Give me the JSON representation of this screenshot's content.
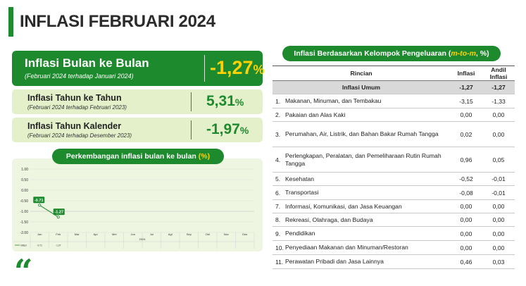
{
  "page": {
    "title": "INFLASI FEBRUARI 2024"
  },
  "mtm": {
    "label": "Inflasi Bulan ke Bulan",
    "sub": "(Februari 2024 terhadap Januari  2024)",
    "value": "-1,27",
    "unit": "%"
  },
  "yoy": {
    "label": "Inflasi Tahun ke Tahun",
    "sub": "(Februari 2024 terhadap Februari 2023)",
    "value": "5,31",
    "unit": "%"
  },
  "ytd": {
    "label": "Inflasi Tahun Kalender",
    "sub": "(Februari 2024 terhadap Desember 2023)",
    "value": "-1,97",
    "unit": "%"
  },
  "chart_section": {
    "title": "Perkembangan inflasi bulan ke bulan",
    "title_unit": "(%)"
  },
  "chart_data": {
    "type": "line",
    "categories": [
      "Jan",
      "Feb",
      "Mar",
      "Apr",
      "Mei",
      "Jun",
      "Jul",
      "Agt",
      "Sep",
      "Okt",
      "Nov",
      "Des"
    ],
    "year_label": "2024",
    "series": [
      {
        "name": "Inflasi",
        "values": [
          -0.71,
          -1.27,
          null,
          null,
          null,
          null,
          null,
          null,
          null,
          null,
          null,
          null
        ]
      }
    ],
    "data_labels": [
      "-0.71",
      "-1.27"
    ],
    "table_values": [
      "-0.71",
      "-1.27"
    ],
    "y_ticks": [
      "1.00",
      "0.50",
      "0.00",
      "-0.50",
      "-1.00",
      "-1.50",
      "-2.00"
    ],
    "ylim": [
      -2.0,
      1.0
    ],
    "color": "#1e8a2e"
  },
  "quote_mark": "“",
  "table": {
    "title": "Inflasi Berdasarkan Kelompok Pengeluaran",
    "title_unit_open": "(",
    "title_unit_em": "m-to-m",
    "title_unit_close": ", %)",
    "headers": {
      "rincian": "Rincian",
      "inflasi": "Inflasi",
      "andil": "Andil Inflasi"
    },
    "total": {
      "label": "Inflasi Umum",
      "inflasi": "-1,27",
      "andil": "-1,27"
    },
    "rows": [
      {
        "no": "1.",
        "label": "Makanan, Minuman, dan Tembakau",
        "inflasi": "-3,15",
        "andil": "-1,33"
      },
      {
        "no": "2.",
        "label": "Pakaian dan Alas Kaki",
        "inflasi": "0,00",
        "andil": "0,00"
      },
      {
        "no": "3.",
        "label": "Perumahan, Air, Listrik, dan Bahan Bakar Rumah Tangga",
        "inflasi": "0,02",
        "andil": "0,00"
      },
      {
        "no": "4.",
        "label": "Perlengkapan, Peralatan, dan Pemeliharaan Rutin Rumah Tangga",
        "inflasi": "0,96",
        "andil": "0,05"
      },
      {
        "no": "5.",
        "label": "Kesehatan",
        "inflasi": "-0,52",
        "andil": "-0,01"
      },
      {
        "no": "6.",
        "label": "Transportasi",
        "inflasi": "-0,08",
        "andil": "-0,01"
      },
      {
        "no": "7.",
        "label": "Informasi, Komunikasi, dan Jasa Keuangan",
        "inflasi": "0,00",
        "andil": "0,00"
      },
      {
        "no": "8.",
        "label": "Rekreasi, Olahraga, dan Budaya",
        "inflasi": "0,00",
        "andil": "0,00"
      },
      {
        "no": "9.",
        "label": "Pendidikan",
        "inflasi": "0,00",
        "andil": "0,00"
      },
      {
        "no": "10.",
        "label": "Penyediaan Makanan dan Minuman/Restoran",
        "inflasi": "0,00",
        "andil": "0,00"
      },
      {
        "no": "11.",
        "label": "Perawatan Pribadi dan Jasa Lainnya",
        "inflasi": "0,46",
        "andil": "0,03"
      }
    ]
  }
}
